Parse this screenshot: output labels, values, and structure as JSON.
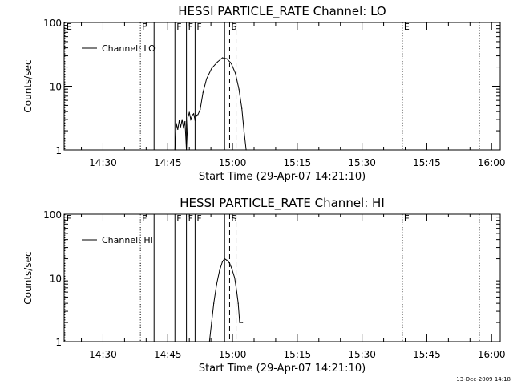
{
  "timestamp": "13-Dec-2009 14:18",
  "chart_data": [
    {
      "type": "line",
      "title": "HESSI PARTICLE_RATE Channel: LO",
      "xlabel": "Start Time (29-Apr-07 14:21:10)",
      "ylabel": "Counts/sec",
      "log_y": true,
      "xlim": [
        "14:21:00",
        "16:02:00"
      ],
      "ylim": [
        1,
        100
      ],
      "x_ticks": [
        "14:30",
        "14:45",
        "15:00",
        "15:15",
        "15:30",
        "15:45",
        "16:00"
      ],
      "y_ticks": [
        "1",
        "10",
        "100"
      ],
      "legend": {
        "position": "top-left",
        "entries": [
          "Channel: LO"
        ]
      },
      "series": [
        {
          "name": "Channel: LO",
          "points": [
            [
              "14:46:40",
              1.0
            ],
            [
              "14:47:00",
              2.6
            ],
            [
              "14:47:20",
              2.1
            ],
            [
              "14:47:40",
              2.9
            ],
            [
              "14:48:00",
              2.3
            ],
            [
              "14:48:20",
              3.0
            ],
            [
              "14:48:40",
              2.2
            ],
            [
              "14:49:00",
              2.8
            ],
            [
              "14:49:20",
              1.0
            ],
            [
              "14:49:40",
              3.2
            ],
            [
              "14:50:00",
              3.9
            ],
            [
              "14:50:20",
              3.0
            ],
            [
              "14:50:40",
              3.5
            ],
            [
              "14:51:00",
              3.7
            ],
            [
              "14:51:20",
              2.9
            ],
            [
              "14:51:40",
              3.5
            ],
            [
              "14:52:00",
              3.6
            ],
            [
              "14:52:30",
              4.3
            ],
            [
              "14:53:10",
              8.0
            ],
            [
              "14:54:00",
              13.0
            ],
            [
              "14:55:10",
              19.0
            ],
            [
              "14:56:30",
              24.0
            ],
            [
              "14:57:40",
              28.0
            ],
            [
              "14:58:40",
              27.0
            ],
            [
              "14:59:40",
              23.0
            ],
            [
              "15:00:40",
              16.0
            ],
            [
              "15:01:30",
              9.0
            ],
            [
              "15:02:10",
              4.5
            ],
            [
              "15:02:40",
              2.0
            ],
            [
              "15:03:10",
              1.0
            ]
          ]
        }
      ],
      "vlines": [
        {
          "time": "14:21:10",
          "label": "E",
          "style": "dotted"
        },
        {
          "time": "14:38:40",
          "label": "F",
          "style": "dotted"
        },
        {
          "time": "14:41:50",
          "label": "",
          "style": "solid"
        },
        {
          "time": "14:46:40",
          "label": "F",
          "style": "solid"
        },
        {
          "time": "14:49:20",
          "label": "F",
          "style": "solid"
        },
        {
          "time": "14:51:20",
          "label": "F",
          "style": "solid"
        },
        {
          "time": "14:58:10",
          "label": "",
          "style": "solid"
        },
        {
          "time": "14:59:20",
          "label": "S",
          "style": "dashed"
        },
        {
          "time": "15:00:50",
          "label": "",
          "style": "dashed"
        },
        {
          "time": "15:39:20",
          "label": "E",
          "style": "dotted"
        },
        {
          "time": "15:57:10",
          "label": "",
          "style": "dotted"
        }
      ]
    },
    {
      "type": "line",
      "title": "HESSI PARTICLE_RATE Channel: HI",
      "xlabel": "Start Time (29-Apr-07 14:21:10)",
      "ylabel": "Counts/sec",
      "log_y": true,
      "xlim": [
        "14:21:00",
        "16:02:00"
      ],
      "ylim": [
        1,
        100
      ],
      "x_ticks": [
        "14:30",
        "14:45",
        "15:00",
        "15:15",
        "15:30",
        "15:45",
        "16:00"
      ],
      "y_ticks": [
        "1",
        "10",
        "100"
      ],
      "legend": {
        "position": "top-left",
        "entries": [
          "Channel: HI"
        ]
      },
      "series": [
        {
          "name": "Channel: HI",
          "points": [
            [
              "14:54:40",
              1.0
            ],
            [
              "14:55:10",
              2.0
            ],
            [
              "14:55:40",
              4.0
            ],
            [
              "14:56:20",
              8.0
            ],
            [
              "14:57:00",
              13.0
            ],
            [
              "14:57:40",
              18.0
            ],
            [
              "14:58:10",
              20.0
            ],
            [
              "14:58:40",
              19.0
            ],
            [
              "14:59:20",
              17.0
            ],
            [
              "14:59:50",
              14.0
            ],
            [
              "15:00:30",
              10.0
            ],
            [
              "15:01:00",
              6.0
            ],
            [
              "15:01:20",
              4.0
            ],
            [
              "15:01:40",
              2.0
            ],
            [
              "15:02:20",
              2.0
            ]
          ]
        }
      ],
      "vlines": [
        {
          "time": "14:21:10",
          "label": "E",
          "style": "dotted"
        },
        {
          "time": "14:38:40",
          "label": "F",
          "style": "dotted"
        },
        {
          "time": "14:41:50",
          "label": "",
          "style": "solid"
        },
        {
          "time": "14:46:40",
          "label": "F",
          "style": "solid"
        },
        {
          "time": "14:49:20",
          "label": "F",
          "style": "solid"
        },
        {
          "time": "14:51:20",
          "label": "F",
          "style": "solid"
        },
        {
          "time": "14:58:10",
          "label": "",
          "style": "solid"
        },
        {
          "time": "14:59:20",
          "label": "S",
          "style": "dashed"
        },
        {
          "time": "15:00:50",
          "label": "",
          "style": "dashed"
        },
        {
          "time": "15:39:20",
          "label": "E",
          "style": "dotted"
        },
        {
          "time": "15:57:10",
          "label": "",
          "style": "dotted"
        }
      ]
    }
  ]
}
